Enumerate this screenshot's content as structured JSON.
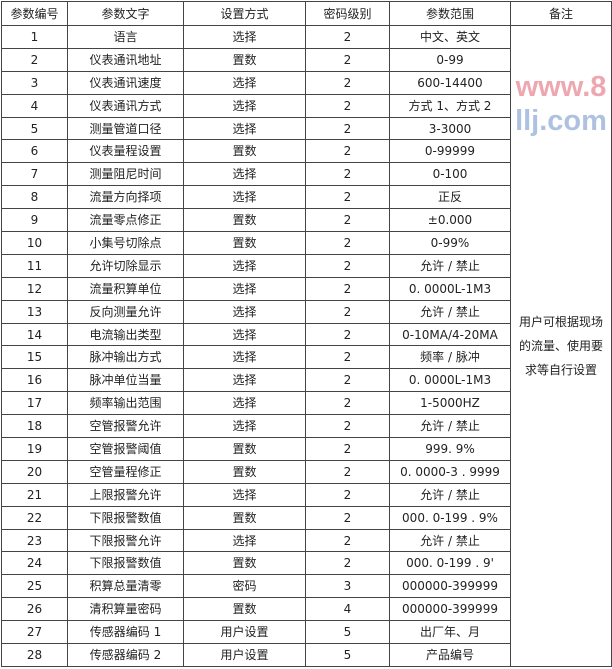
{
  "headers": [
    "参数编号",
    "参数文字",
    "设置方式",
    "密码级别",
    "参数范围",
    "备注"
  ],
  "rows": [
    [
      "1",
      "语言",
      "选择",
      "2",
      "中文、英文"
    ],
    [
      "2",
      "仪表通讯地址",
      "置数",
      "2",
      "0-99"
    ],
    [
      "3",
      "仪表通讯速度",
      "选择",
      "2",
      "600-14400"
    ],
    [
      "4",
      "仪表通讯方式",
      "选择",
      "2",
      "方式 1、方式 2"
    ],
    [
      "5",
      "测量管道口径",
      "选择",
      "2",
      "3-3000"
    ],
    [
      "6",
      "仪表量程设置",
      "置数",
      "2",
      "0-99999"
    ],
    [
      "7",
      "测量阻尼时间",
      "选择",
      "2",
      "0-100"
    ],
    [
      "8",
      "流量方向择项",
      "选择",
      "2",
      "正反"
    ],
    [
      "9",
      "流量零点修正",
      "置数",
      "2",
      "±0.000"
    ],
    [
      "10",
      "小集号切除点",
      "置数",
      "2",
      "0-99%"
    ],
    [
      "11",
      "允许切除显示",
      "选择",
      "2",
      "允许 / 禁止"
    ],
    [
      "12",
      "流量积算单位",
      "选择",
      "2",
      "0. 0000L-1M3"
    ],
    [
      "13",
      "反向测量允许",
      "选择",
      "2",
      "允许 / 禁止"
    ],
    [
      "14",
      "电流输出类型",
      "选择",
      "2",
      "0-10MA/4-20MA"
    ],
    [
      "15",
      "脉冲输出方式",
      "选择",
      "2",
      "频率 / 脉冲"
    ],
    [
      "16",
      "脉冲单位当量",
      "选择",
      "2",
      "0. 0000L-1M3"
    ],
    [
      "17",
      "频率输出范围",
      "选择",
      "2",
      "1-5000HZ"
    ],
    [
      "18",
      "空管报警允许",
      "选择",
      "2",
      "允许 / 禁止"
    ],
    [
      "19",
      "空管报警阈值",
      "置数",
      "2",
      "999. 9%"
    ],
    [
      "20",
      "空管量程修正",
      "置数",
      "2",
      "0. 0000-3 . 9999"
    ],
    [
      "21",
      "上限报警允许",
      "选择",
      "2",
      "允许 / 禁止"
    ],
    [
      "22",
      "下限报警数值",
      "置数",
      "2",
      "000. 0-199 . 9%"
    ],
    [
      "23",
      "下限报警允许",
      "选择",
      "2",
      "允许 / 禁止"
    ],
    [
      "24",
      "下限报警数值",
      "置数",
      "2",
      "000. 0-199 . 9'"
    ],
    [
      "25",
      "积算总量清零",
      "密码",
      "3",
      "000000-399999"
    ],
    [
      "26",
      "清积算量密码",
      "置数",
      "4",
      "000000-399999"
    ],
    [
      "27",
      "传感器编码  1",
      "用户设置",
      "5",
      "出厂年、月"
    ],
    [
      "28",
      "传感器编码  2",
      "用户设置",
      "5",
      "产品编号"
    ]
  ],
  "remark": "用户可根据现场的流量、使用要求等自行设置",
  "watermark": {
    "red": "www.8",
    "blue": "llj.com"
  }
}
